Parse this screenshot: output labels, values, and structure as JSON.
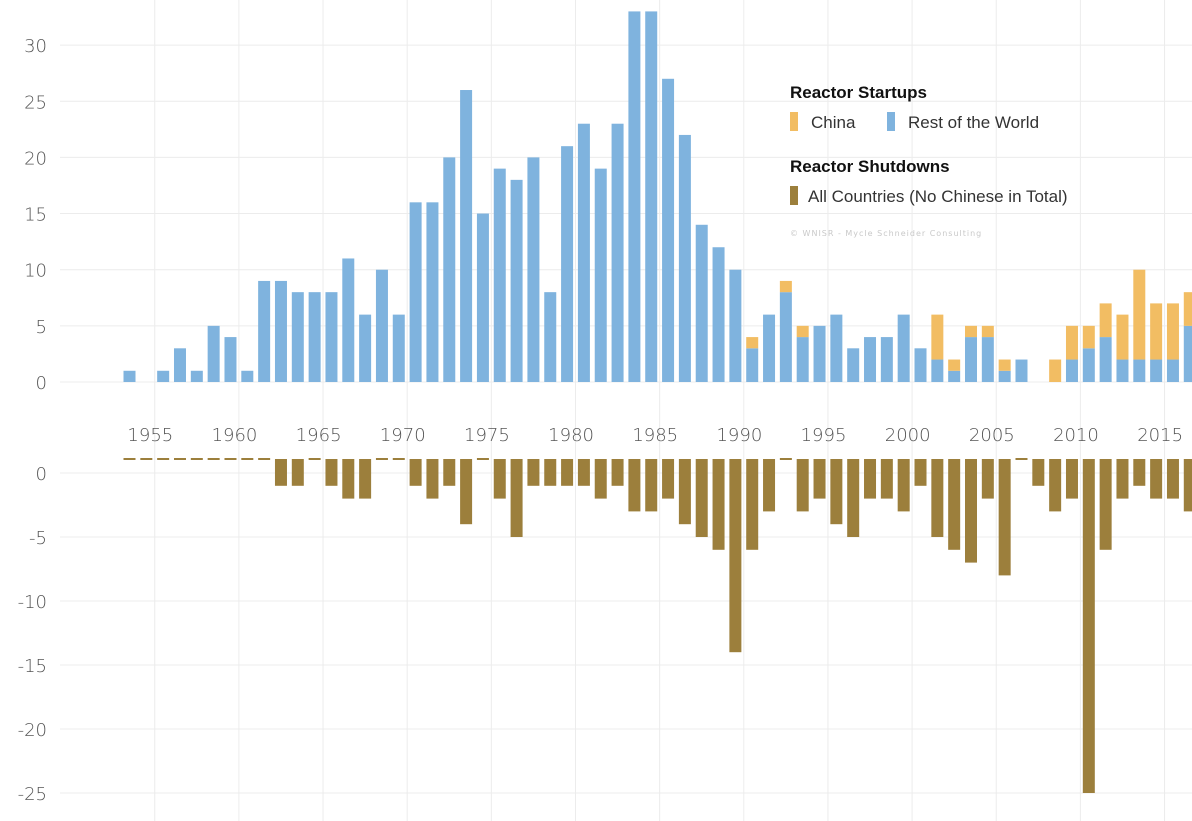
{
  "chart_data": [
    {
      "type": "bar",
      "stacked": true,
      "years": [
        1954,
        1955,
        1956,
        1957,
        1958,
        1959,
        1960,
        1961,
        1962,
        1963,
        1964,
        1965,
        1966,
        1967,
        1968,
        1969,
        1970,
        1971,
        1972,
        1973,
        1974,
        1975,
        1976,
        1977,
        1978,
        1979,
        1980,
        1981,
        1982,
        1983,
        1984,
        1985,
        1986,
        1987,
        1988,
        1989,
        1990,
        1991,
        1992,
        1993,
        1994,
        1995,
        1996,
        1997,
        1998,
        1999,
        2000,
        2001,
        2002,
        2003,
        2004,
        2005,
        2006,
        2007,
        2008,
        2009,
        2010,
        2011,
        2012,
        2013,
        2014,
        2015,
        2016,
        2017
      ],
      "series": [
        {
          "name": "China",
          "color": "#f2bd63",
          "values": [
            0,
            0,
            0,
            0,
            0,
            0,
            0,
            0,
            0,
            0,
            0,
            0,
            0,
            0,
            0,
            0,
            0,
            0,
            0,
            0,
            0,
            0,
            0,
            0,
            0,
            0,
            0,
            0,
            0,
            0,
            0,
            0,
            0,
            0,
            0,
            0,
            0,
            1,
            0,
            1,
            1,
            0,
            0,
            0,
            0,
            0,
            0,
            0,
            4,
            1,
            1,
            1,
            1,
            0,
            0,
            2,
            3,
            2,
            3,
            4,
            8,
            5,
            5,
            3
          ]
        },
        {
          "name": "Rest of the World",
          "color": "#7fb3de",
          "values": [
            1,
            0,
            1,
            3,
            1,
            5,
            4,
            1,
            9,
            9,
            8,
            8,
            8,
            11,
            6,
            10,
            6,
            16,
            16,
            20,
            26,
            15,
            19,
            18,
            20,
            8,
            21,
            23,
            19,
            23,
            33,
            33,
            27,
            22,
            14,
            12,
            10,
            3,
            6,
            8,
            4,
            5,
            6,
            3,
            4,
            4,
            6,
            3,
            2,
            1,
            4,
            4,
            1,
            2,
            0,
            0,
            2,
            3,
            4,
            2,
            2,
            2,
            2,
            5
          ]
        }
      ],
      "yticks": [
        0,
        5,
        10,
        15,
        20,
        25,
        30
      ],
      "ylim": [
        -1,
        33
      ]
    },
    {
      "type": "bar",
      "years": [
        1954,
        1955,
        1956,
        1957,
        1958,
        1959,
        1960,
        1961,
        1962,
        1963,
        1964,
        1965,
        1966,
        1967,
        1968,
        1969,
        1970,
        1971,
        1972,
        1973,
        1974,
        1975,
        1976,
        1977,
        1978,
        1979,
        1980,
        1981,
        1982,
        1983,
        1984,
        1985,
        1986,
        1987,
        1988,
        1989,
        1990,
        1991,
        1992,
        1993,
        1994,
        1995,
        1996,
        1997,
        1998,
        1999,
        2000,
        2001,
        2002,
        2003,
        2004,
        2005,
        2006,
        2007,
        2008,
        2009,
        2010,
        2011,
        2012,
        2013,
        2014,
        2015,
        2016,
        2017
      ],
      "series": [
        {
          "name": "All Countries (No Chinese in Total)",
          "color": "#9c7f3c",
          "values": [
            0,
            0,
            0,
            0,
            0,
            0,
            0,
            0,
            0,
            -1,
            -1,
            0,
            -1,
            -2,
            -2,
            0,
            0,
            -1,
            -2,
            -1,
            -4,
            0,
            -2,
            -5,
            -1,
            -1,
            -1,
            -1,
            -2,
            -1,
            -3,
            -3,
            -2,
            -4,
            -5,
            -6,
            -14,
            -6,
            -3,
            0,
            -3,
            -2,
            -4,
            -5,
            -2,
            -2,
            -3,
            -1,
            -5,
            -6,
            -7,
            -2,
            -8,
            0,
            -1,
            -3,
            -2,
            -25,
            -6,
            -2,
            -1,
            -2,
            -2,
            -3
          ]
        }
      ],
      "yticks": [
        0,
        -5,
        -10,
        -15,
        -20,
        -25
      ],
      "ylim": [
        -26,
        1
      ]
    }
  ],
  "xaxis": {
    "labels": [
      "1955",
      "1960",
      "1965",
      "1970",
      "1975",
      "1980",
      "1985",
      "1990",
      "1995",
      "2000",
      "2005",
      "2010",
      "2015"
    ]
  },
  "legend": {
    "startups_title": "Reactor Startups",
    "china_label": "China",
    "rest_label": "Rest of the World",
    "shutdowns_title": "Reactor Shutdowns",
    "shutdowns_label": "All Countries (No Chinese in Total)",
    "credit": "© WNISR - Mycle Schneider Consulting",
    "china_color": "#f2bd63",
    "rest_color": "#7fb3de",
    "shutdown_color": "#9c7f3c"
  }
}
